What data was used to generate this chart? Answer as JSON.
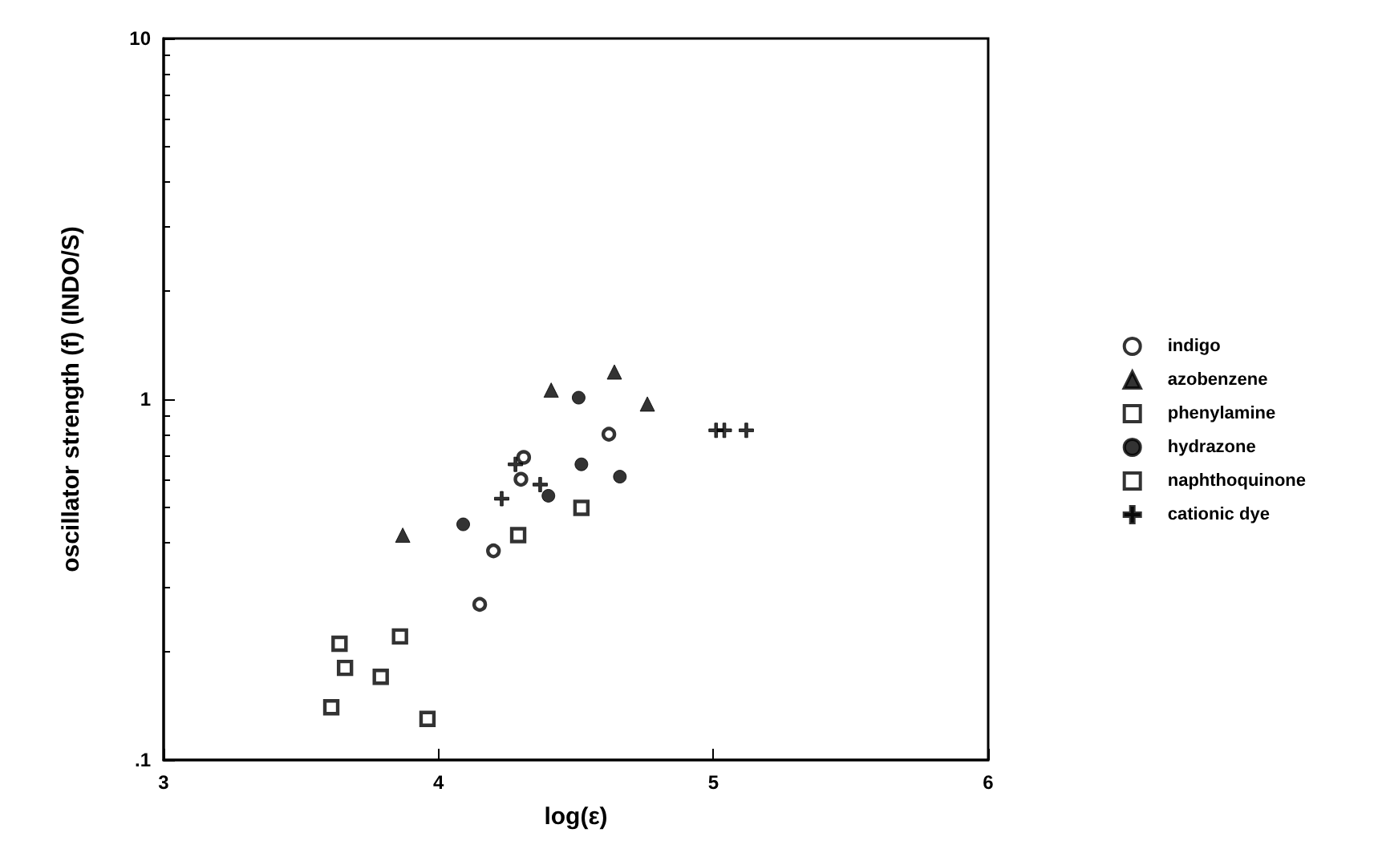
{
  "chart_data": {
    "type": "scatter",
    "xlabel": "log(ε)",
    "ylabel": "oscillator strength (f) (INDO/S)",
    "xlim": [
      3,
      6
    ],
    "xticks": [
      3,
      4,
      5,
      6
    ],
    "ylim": [
      0.1,
      10
    ],
    "yticks": [
      {
        "value": 0.1,
        "label": ".1"
      },
      1,
      10
    ],
    "log": "y",
    "grid": false,
    "legend": "right",
    "series": [
      {
        "name": "indigo",
        "color": "#000000",
        "marker": "circle",
        "x": [
          4.15,
          4.2,
          4.3,
          4.31,
          4.62
        ],
        "values": [
          0.27,
          0.38,
          0.6,
          0.69,
          0.8
        ]
      },
      {
        "name": "azobenzene",
        "color": "#000000",
        "marker": "triangle",
        "x": [
          3.87,
          4.41,
          4.64,
          4.76
        ],
        "values": [
          0.42,
          1.06,
          1.19,
          0.97
        ]
      },
      {
        "name": "phenylamine",
        "color": "#000000",
        "marker": "square",
        "x": [
          3.61,
          3.64,
          3.66,
          3.79
        ],
        "values": [
          0.14,
          0.21,
          0.18,
          0.17
        ]
      },
      {
        "name": "hydrazone",
        "color": "#000000",
        "marker": "circle_filled",
        "x": [
          4.09,
          4.4,
          4.51,
          4.52,
          4.66
        ],
        "values": [
          0.45,
          0.54,
          1.01,
          0.66,
          0.61
        ]
      },
      {
        "name": "naphthoquinone",
        "color": "#000000",
        "marker": "square",
        "x": [
          3.86,
          3.96,
          4.29,
          4.52
        ],
        "values": [
          0.22,
          0.13,
          0.42,
          0.5
        ]
      },
      {
        "name": "cationic dye",
        "color": "#000000",
        "marker": "cross",
        "x": [
          4.23,
          4.28,
          4.37,
          5.01,
          5.04,
          5.12
        ],
        "values": [
          0.53,
          0.66,
          0.58,
          0.82,
          0.82,
          0.82
        ]
      }
    ]
  }
}
